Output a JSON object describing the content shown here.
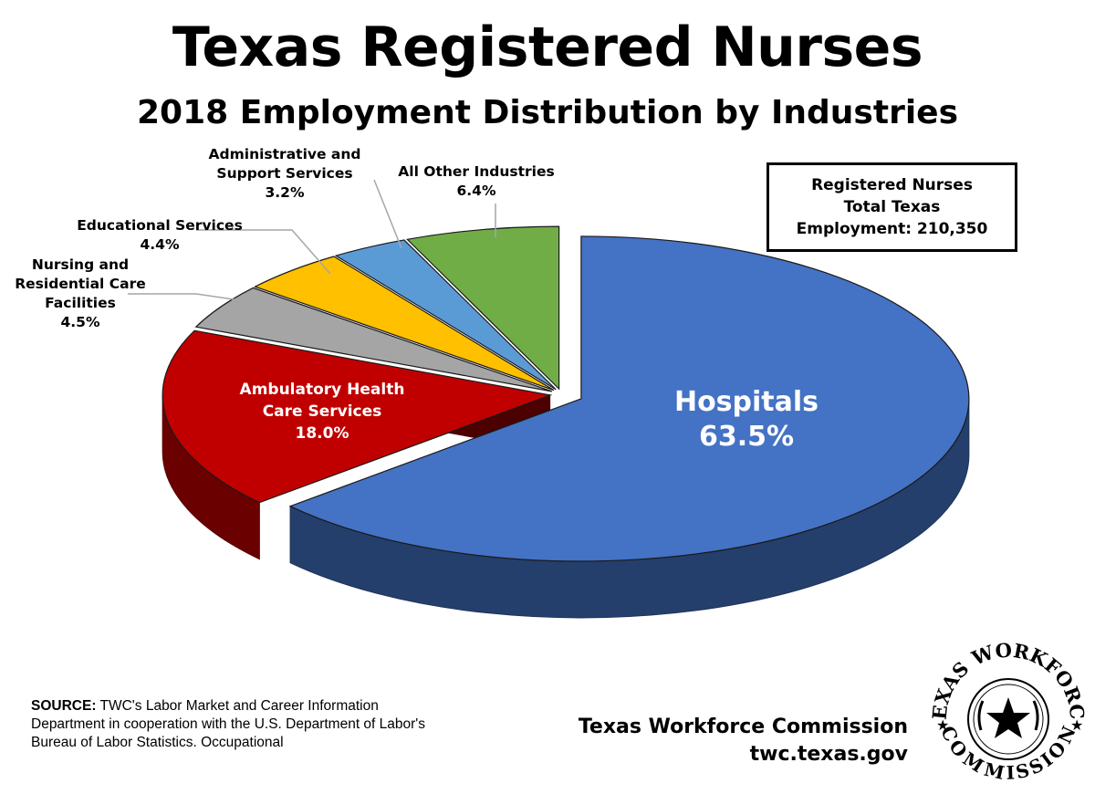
{
  "header": {
    "title": "Texas Registered Nurses",
    "subtitle": "2018 Employment Distribution by Industries"
  },
  "total_box": {
    "line1": "Registered Nurses",
    "line2": "Total Texas",
    "line3": "Employment: 210,350"
  },
  "source": {
    "label": "SOURCE:",
    "text": "TWC's Labor Market and Career Information Department in cooperation with the U.S. Department of Labor's Bureau of Labor Statistics. Occupational"
  },
  "footer": {
    "org_name": "Texas Workforce Commission",
    "url": "twc.texas.gov"
  },
  "seal": {
    "text_top": "TEXAS WORKFORCE",
    "text_bottom": "COMMISSION"
  },
  "chart_data": {
    "type": "pie",
    "style": "3d-exploded",
    "slices": [
      {
        "label": "Hospitals",
        "value": 63.5,
        "display": "63.5%",
        "color": "#4472C4"
      },
      {
        "label": "Ambulatory Health Care Services",
        "value": 18.0,
        "display": "18.0%",
        "color": "#C00000"
      },
      {
        "label": "Nursing and Residential Care Facilities",
        "value": 4.5,
        "display": "4.5%",
        "color": "#A5A5A5"
      },
      {
        "label": "Educational Services",
        "value": 4.4,
        "display": "4.4%",
        "color": "#FFC000"
      },
      {
        "label": "Administrative and Support Services",
        "value": 3.2,
        "display": "3.2%",
        "color": "#5B9BD5"
      },
      {
        "label": "All Other Industries",
        "value": 6.4,
        "display": "6.4%",
        "color": "#70AD47"
      }
    ]
  }
}
